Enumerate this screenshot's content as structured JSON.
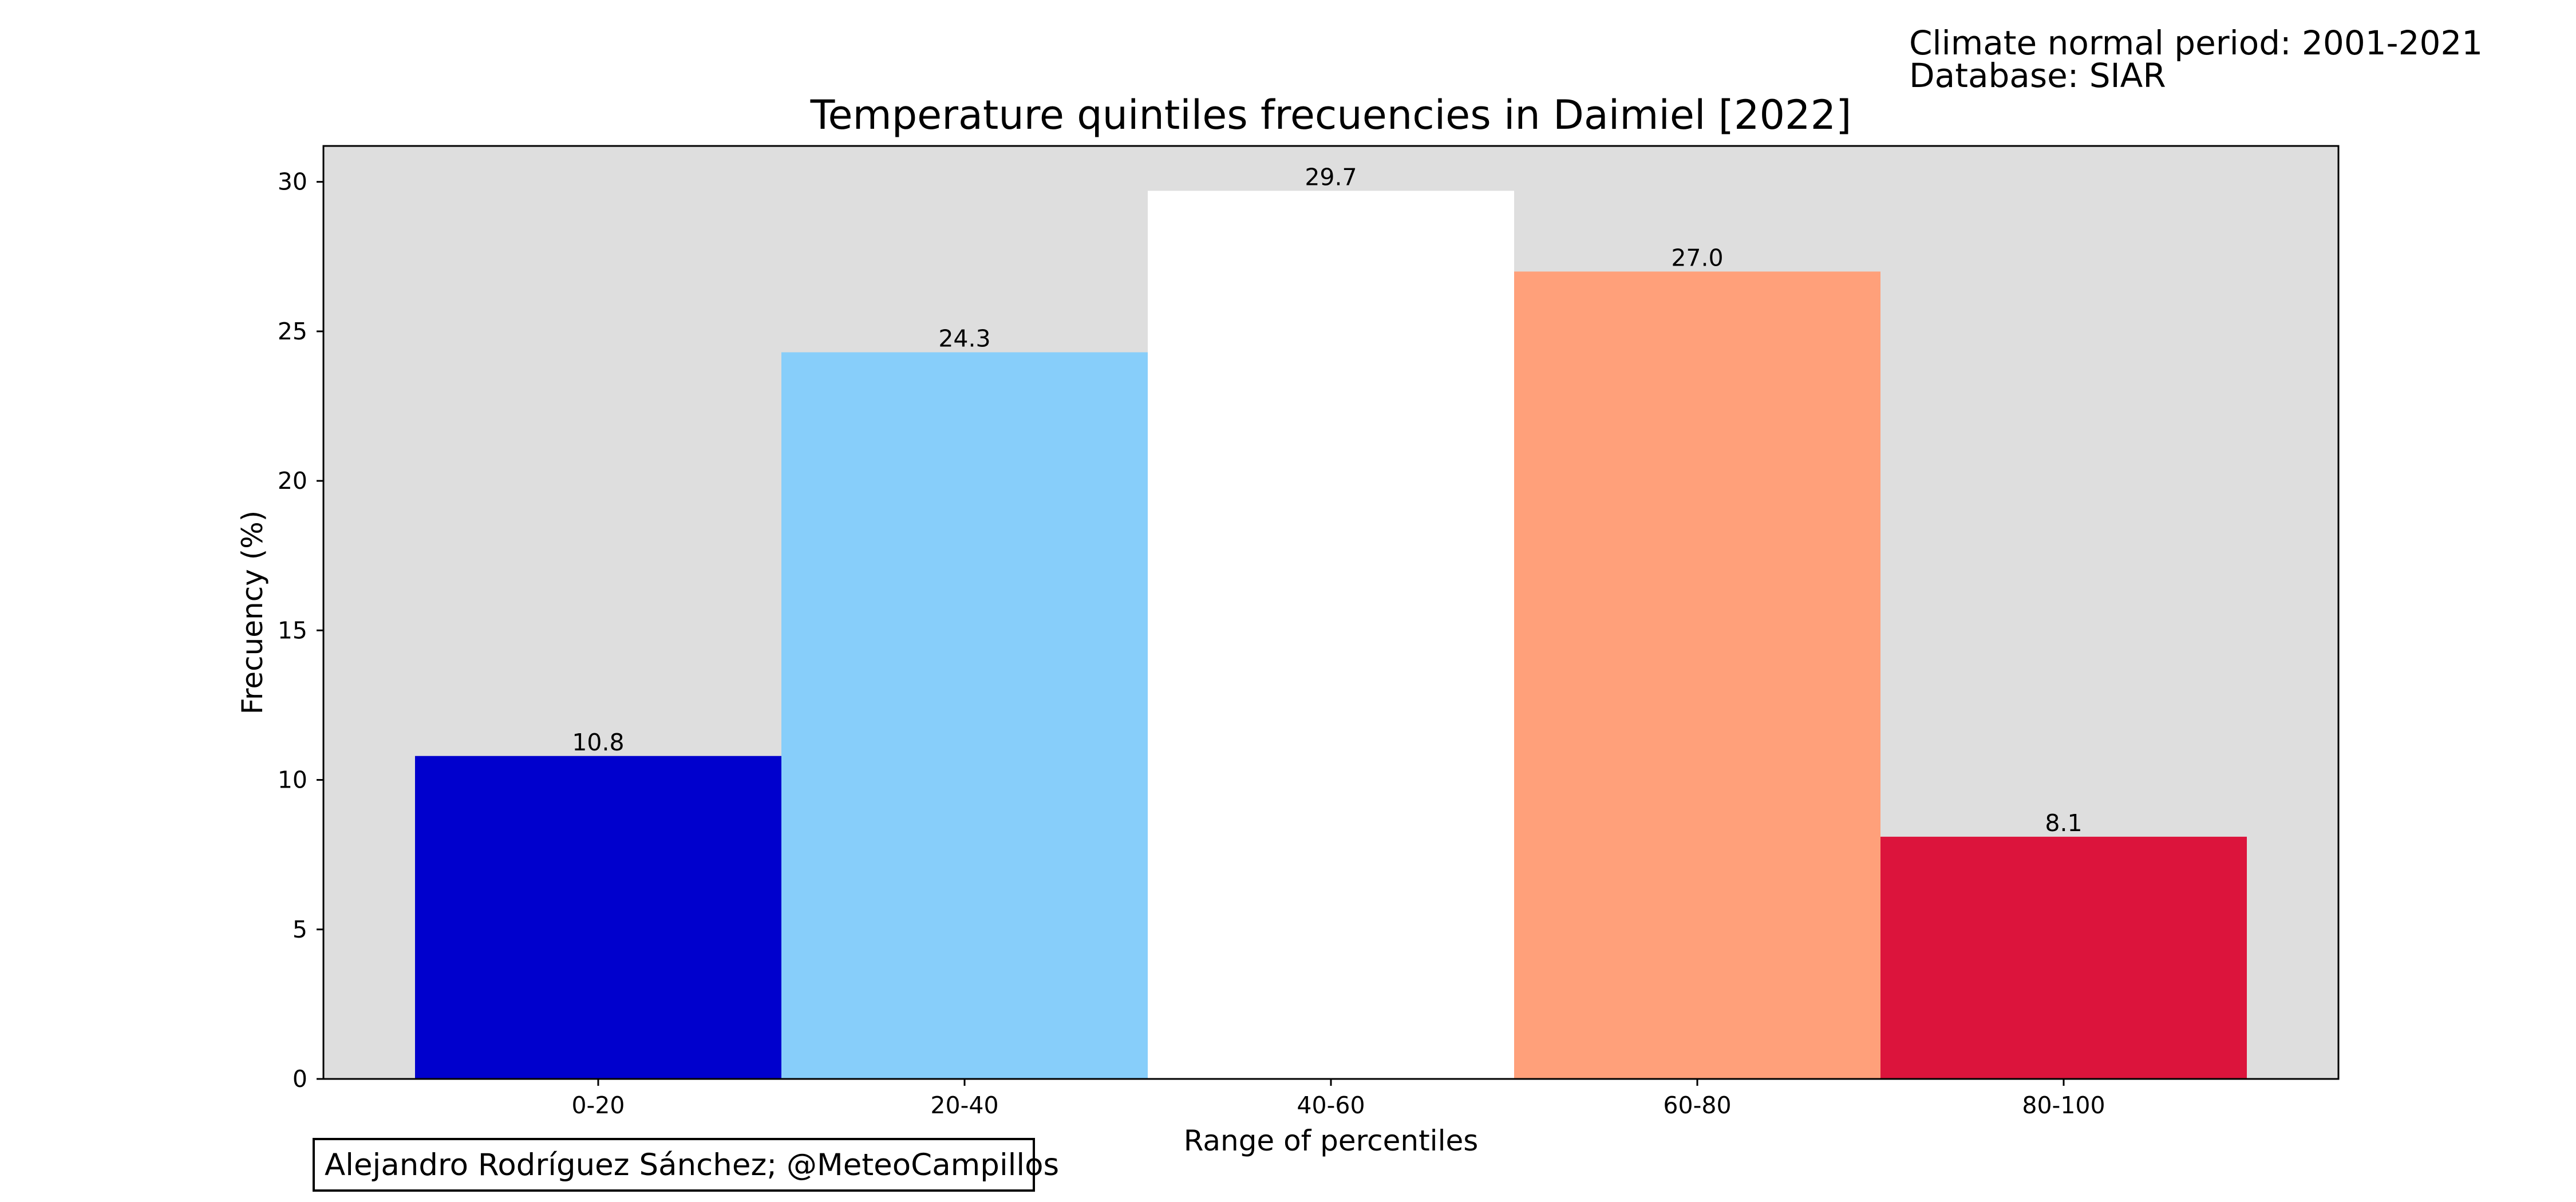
{
  "chart_data": {
    "type": "bar",
    "title": "Temperature quintiles frecuencies in Daimiel [2022]",
    "xlabel": "Range of percentiles",
    "ylabel": "Frecuency (%)",
    "categories": [
      "0-20",
      "20-40",
      "40-60",
      "60-80",
      "80-100"
    ],
    "values": [
      10.8,
      24.3,
      29.7,
      27.0,
      8.1
    ],
    "value_labels": [
      "10.8",
      "24.3",
      "29.7",
      "27.0",
      "8.1"
    ],
    "colors": [
      "#0000cd",
      "#87cefa",
      "#ffffff",
      "#ffa07a",
      "#dc143c"
    ],
    "yticks": [
      0,
      5,
      10,
      15,
      20,
      25,
      30
    ],
    "ylim": [
      0,
      31.2
    ],
    "grid": false,
    "plot_background": "#dedede"
  },
  "notes": {
    "line1": "Climate normal period: 2001-2021",
    "line2": "Database: SIAR"
  },
  "credit": "Alejandro Rodríguez Sánchez; @MeteoCampillos"
}
